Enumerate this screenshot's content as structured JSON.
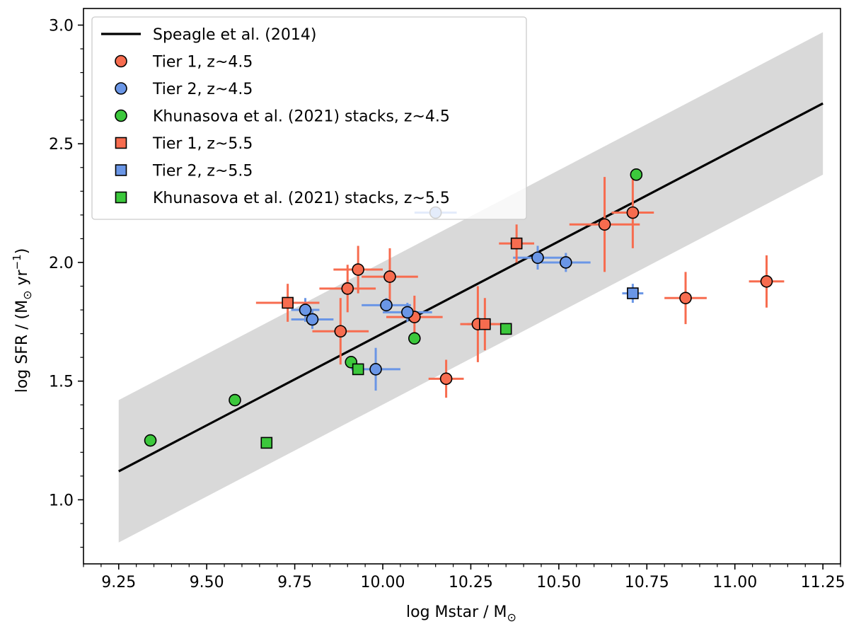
{
  "chart_data": {
    "type": "scatter",
    "xlabel_main": "log Mstar / M",
    "xlabel_sub": "⊙",
    "ylabel_main": "log SFR / (M",
    "ylabel_sub": "⊙",
    "ylabel_unit": " yr",
    "ylabel_exp": "−1",
    "ylabel_close": ")",
    "xlim": [
      9.15,
      11.3
    ],
    "ylim": [
      0.73,
      3.07
    ],
    "xticks": [
      9.25,
      9.5,
      9.75,
      10.0,
      10.25,
      10.5,
      10.75,
      11.0,
      11.25
    ],
    "xtick_labels": [
      "9.25",
      "9.50",
      "9.75",
      "10.00",
      "10.25",
      "10.50",
      "10.75",
      "11.00",
      "11.25"
    ],
    "yticks": [
      1.0,
      1.5,
      2.0,
      2.5,
      3.0
    ],
    "ytick_labels": [
      "1.0",
      "1.5",
      "2.0",
      "2.5",
      "3.0"
    ],
    "relation": {
      "name": "Speagle et al. (2014)",
      "x": [
        9.25,
        11.25
      ],
      "y": [
        1.12,
        2.67
      ],
      "scatter_band": 0.3
    },
    "series": [
      {
        "name": "Tier 1, z~4.5",
        "marker": "circle",
        "color": "#f76c4f",
        "points": [
          {
            "x": 9.88,
            "y": 1.71,
            "xerr": 0.08,
            "yerr": 0.14
          },
          {
            "x": 9.9,
            "y": 1.89,
            "xerr": 0.08,
            "yerr": 0.1
          },
          {
            "x": 9.93,
            "y": 1.97,
            "xerr": 0.07,
            "yerr": 0.1
          },
          {
            "x": 10.02,
            "y": 1.94,
            "xerr": 0.08,
            "yerr": 0.12
          },
          {
            "x": 10.09,
            "y": 1.77,
            "xerr": 0.08,
            "yerr": 0.09
          },
          {
            "x": 10.18,
            "y": 1.51,
            "xerr": 0.05,
            "yerr": 0.08
          },
          {
            "x": 10.27,
            "y": 1.74,
            "xerr": 0.05,
            "yerr": 0.16
          },
          {
            "x": 10.63,
            "y": 2.16,
            "xerr": 0.1,
            "yerr": 0.2
          },
          {
            "x": 10.71,
            "y": 2.21,
            "xerr": 0.06,
            "yerr": 0.15
          },
          {
            "x": 10.86,
            "y": 1.85,
            "xerr": 0.06,
            "yerr": 0.11
          },
          {
            "x": 11.09,
            "y": 1.92,
            "xerr": 0.05,
            "yerr": 0.11
          }
        ]
      },
      {
        "name": "Tier 2, z~4.5",
        "marker": "circle",
        "color": "#6a96e6",
        "points": [
          {
            "x": 9.78,
            "y": 1.8,
            "xerr": 0.04,
            "yerr": 0.05
          },
          {
            "x": 9.8,
            "y": 1.76,
            "xerr": 0.06,
            "yerr": 0.04
          },
          {
            "x": 9.98,
            "y": 1.55,
            "xerr": 0.07,
            "yerr": 0.09
          },
          {
            "x": 10.01,
            "y": 1.82,
            "xerr": 0.07,
            "yerr": 0.03
          },
          {
            "x": 10.07,
            "y": 1.79,
            "xerr": 0.07,
            "yerr": 0.04
          },
          {
            "x": 10.15,
            "y": 2.21,
            "xerr": 0.06,
            "yerr": 0.02
          },
          {
            "x": 10.44,
            "y": 2.02,
            "xerr": 0.07,
            "yerr": 0.05
          },
          {
            "x": 10.52,
            "y": 2.0,
            "xerr": 0.07,
            "yerr": 0.04
          }
        ]
      },
      {
        "name": "Khunasova et al. (2021) stacks, z~4.5",
        "marker": "circle",
        "color": "#3cc83c",
        "points": [
          {
            "x": 9.34,
            "y": 1.25
          },
          {
            "x": 9.58,
            "y": 1.42
          },
          {
            "x": 9.91,
            "y": 1.58
          },
          {
            "x": 10.09,
            "y": 1.68
          },
          {
            "x": 10.72,
            "y": 2.37
          }
        ]
      },
      {
        "name": "Tier 1, z~5.5",
        "marker": "square",
        "color": "#f76c4f",
        "points": [
          {
            "x": 9.73,
            "y": 1.83,
            "xerr": 0.09,
            "yerr": 0.08
          },
          {
            "x": 10.29,
            "y": 1.74,
            "xerr": 0.05,
            "yerr": 0.11
          },
          {
            "x": 10.38,
            "y": 2.08,
            "xerr": 0.05,
            "yerr": 0.08
          }
        ]
      },
      {
        "name": "Tier 2, z~5.5",
        "marker": "square",
        "color": "#6a96e6",
        "points": [
          {
            "x": 10.71,
            "y": 1.87,
            "xerr": 0.03,
            "yerr": 0.04
          }
        ]
      },
      {
        "name": "Khunasova et al. (2021) stacks, z~5.5",
        "marker": "square",
        "color": "#3cc83c",
        "points": [
          {
            "x": 9.67,
            "y": 1.24
          },
          {
            "x": 9.93,
            "y": 1.55
          },
          {
            "x": 10.35,
            "y": 1.72
          }
        ]
      }
    ]
  },
  "colors": {
    "band": "#d9d9d9",
    "line": "#000000",
    "frame": "#000000"
  }
}
